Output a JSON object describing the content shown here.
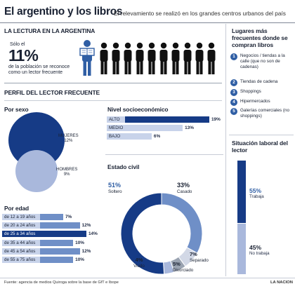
{
  "header": {
    "title": "El argentino y los libros",
    "subtitle": "El relevamiento se realizó en los grandes centros urbanos del país"
  },
  "lectura": {
    "heading": "LA LECTURA EN LA ARGENTINA",
    "text_pre": "Sólo el",
    "percent": "11%",
    "text_post": "de la población se reconoce como un lector frecuente"
  },
  "perfil": {
    "heading": "PERFIL DEL LECTOR FRECUENTE"
  },
  "colors": {
    "dark": "#163b86",
    "mid": "#6f8fc7",
    "light": "#a9b8dc",
    "pale": "#c8d3ea"
  },
  "chart_data": [
    {
      "id": "sexo",
      "type": "bubble",
      "title": "Por sexo",
      "categories": [
        "MUJERES",
        "HOMBRES"
      ],
      "values": [
        12,
        9
      ],
      "labels": [
        "12%",
        "9%"
      ]
    },
    {
      "id": "edad",
      "type": "bar",
      "title": "Por edad",
      "categories": [
        "de 12 a 19 años",
        "de 20 a 24 años",
        "de 25 a 34 años",
        "de 35 a 44 años",
        "de 45 a 54 años",
        "de 55 a 75 años"
      ],
      "values": [
        7,
        12,
        14,
        10,
        12,
        10
      ],
      "labels": [
        "7%",
        "12%",
        "14%",
        "10%",
        "12%",
        "10%"
      ],
      "highlight": "de 25 a 34 años"
    },
    {
      "id": "nivel",
      "type": "bar",
      "title": "Nivel socioeconómico",
      "categories": [
        "ALTO",
        "MEDIO",
        "BAJO"
      ],
      "values": [
        19,
        13,
        6
      ],
      "labels": [
        "19%",
        "13%",
        "6%"
      ]
    },
    {
      "id": "civil",
      "type": "pie",
      "title": "Estado civil",
      "categories": [
        "Soltero",
        "Casado",
        "Separado",
        "Divorciado",
        "Viudo"
      ],
      "values": [
        51,
        33,
        7,
        5,
        4
      ],
      "labels": [
        "51%",
        "33%",
        "7%",
        "5%",
        "4%"
      ]
    },
    {
      "id": "laboral",
      "type": "bar",
      "title": "Situación laboral del lector",
      "categories": [
        "Trabaja",
        "No trabaja"
      ],
      "values": [
        55,
        45
      ],
      "labels": [
        "55%",
        "45%"
      ]
    }
  ],
  "lugares": {
    "heading": "Lugares más frecuentes donde se compran libros",
    "items": [
      {
        "n": "1",
        "text": "Negocios / tiendas a la calle (que no son de cadenas)"
      },
      {
        "n": "2",
        "text": "Tiendas de cadena"
      },
      {
        "n": "3",
        "text": "Shoppings"
      },
      {
        "n": "4",
        "text": "Hipermercados"
      },
      {
        "n": "5",
        "text": "Galerías comerciales (no shoppings)"
      }
    ]
  },
  "footer": {
    "source": "Fuente: agencia de medios Quiroga sobre la base de GfT e Ibope",
    "brand": "LA NACION"
  }
}
